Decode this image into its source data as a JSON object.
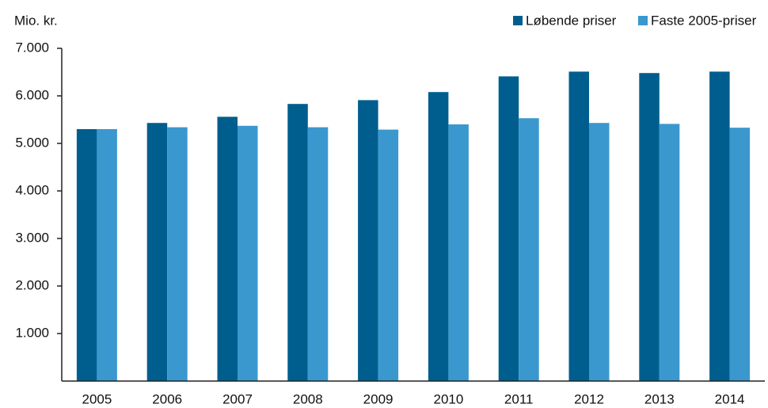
{
  "chart_data": {
    "type": "bar",
    "y_label": "Mio. kr.",
    "categories": [
      "2005",
      "2006",
      "2007",
      "2008",
      "2009",
      "2010",
      "2011",
      "2012",
      "2013",
      "2014"
    ],
    "series": [
      {
        "name": "Løbende priser",
        "color": "#005e8e",
        "values": [
          5300,
          5430,
          5560,
          5830,
          5910,
          6080,
          6410,
          6510,
          6480,
          6510
        ]
      },
      {
        "name": "Faste 2005-priser",
        "color": "#3a98cf",
        "values": [
          5300,
          5340,
          5370,
          5340,
          5290,
          5400,
          5530,
          5430,
          5410,
          5330
        ]
      }
    ],
    "ylim": [
      0,
      7000
    ],
    "yticks": [
      {
        "value": 1000,
        "label": "1.000"
      },
      {
        "value": 2000,
        "label": "2.000"
      },
      {
        "value": 3000,
        "label": "3.000"
      },
      {
        "value": 4000,
        "label": "4.000"
      },
      {
        "value": 5000,
        "label": "5.000"
      },
      {
        "value": 6000,
        "label": "6.000"
      },
      {
        "value": 7000,
        "label": "7.000"
      }
    ],
    "legend": "top-right"
  }
}
